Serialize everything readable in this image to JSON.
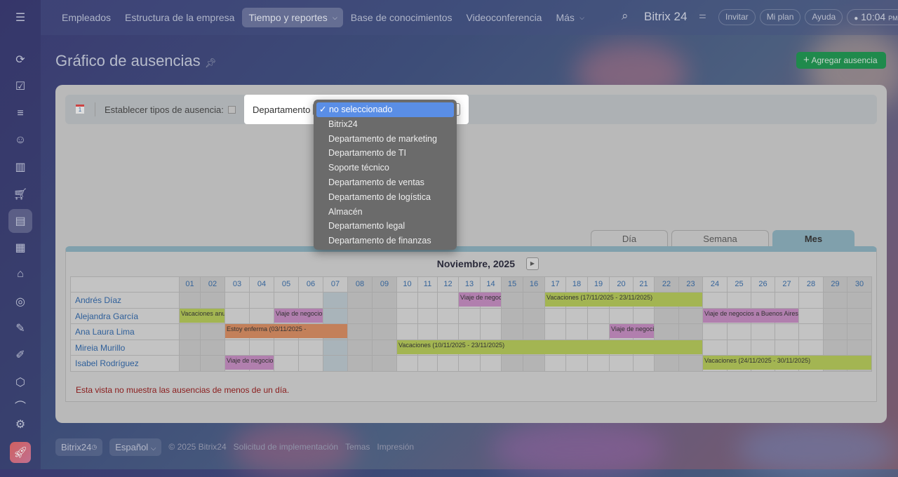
{
  "topnav": {
    "items": [
      "Empleados",
      "Estructura de la empresa",
      "Tiempo y reportes",
      "Base de conocimientos",
      "Videoconferencia",
      "Más"
    ],
    "active": 2,
    "brand": "Bitrix 24",
    "invite": "Invitar",
    "plan": "Mi plan",
    "help": "Ayuda",
    "time": "10:04",
    "ampm": "PM"
  },
  "sidebar": {
    "icons": [
      "feed-icon",
      "tasks-icon",
      "crm-funnel-icon",
      "robot-icon",
      "analytics-icon",
      "shop-cart-icon",
      "employees-icon",
      "calendar-list-icon",
      "warehouse-icon",
      "target-icon",
      "sign-pen-icon",
      "document-edit-icon",
      "box-icon",
      "more-icon",
      "settings-icon",
      "rocket-icon"
    ],
    "active": 6
  },
  "page": {
    "title": "Gráfico de ausencias",
    "add_button": "Agregar ausencia"
  },
  "filter": {
    "types_label": "Establecer tipos de ausencia:",
    "department_label": "Departamento",
    "department_options": [
      "no seleccionado",
      "Bitrix24",
      "Departamento de marketing",
      "Departamento de TI",
      "Soporte técnico",
      "Departamento de ventas",
      "Departamento de logística",
      "Almacén",
      "Departamento legal",
      "Departamento de finanzas"
    ],
    "selected": 0
  },
  "view_tabs": [
    "Día",
    "Semana",
    "Mes"
  ],
  "active_tab": 2,
  "calendar": {
    "month_title": "Noviembre, 2025",
    "days": [
      "01",
      "02",
      "03",
      "04",
      "05",
      "06",
      "07",
      "08",
      "09",
      "10",
      "11",
      "12",
      "13",
      "14",
      "15",
      "16",
      "17",
      "18",
      "19",
      "20",
      "21",
      "22",
      "23",
      "24",
      "25",
      "26",
      "27",
      "28",
      "29",
      "30"
    ],
    "weekends": [
      1,
      2,
      8,
      9,
      15,
      16,
      22,
      23,
      29,
      30
    ],
    "today": 7,
    "employees": [
      {
        "name": "Andrés Díaz",
        "absences": [
          {
            "label": "Viaje de negocios",
            "start": 13,
            "end": 14,
            "type": "trip"
          },
          {
            "label": "Vacaciones (17/11/2025 - 23/11/2025)",
            "start": 17,
            "end": 23,
            "type": "vacation"
          }
        ]
      },
      {
        "name": "Alejandra García",
        "absences": [
          {
            "label": "Vacaciones anuales",
            "start": 1,
            "end": 2,
            "type": "vacation"
          },
          {
            "label": "Viaje de negocios",
            "start": 5,
            "end": 6,
            "type": "trip"
          },
          {
            "label": "Viaje de negocios a Buenos Aires",
            "start": 24,
            "end": 27,
            "type": "trip"
          }
        ]
      },
      {
        "name": "Ana Laura Lima",
        "absences": [
          {
            "label": "Estoy enferma (03/11/2025 - ",
            "start": 3,
            "end": 7,
            "type": "sick"
          },
          {
            "label": "Viaje de negocios",
            "start": 20,
            "end": 21,
            "type": "trip"
          }
        ]
      },
      {
        "name": "Mireia Murillo",
        "absences": [
          {
            "label": "Vacaciones (10/11/2025 - 23/11/2025)",
            "start": 10,
            "end": 23,
            "type": "vacation"
          }
        ]
      },
      {
        "name": "Isabel Rodríguez",
        "absences": [
          {
            "label": "Viaje de negocios",
            "start": 3,
            "end": 4,
            "type": "trip"
          },
          {
            "label": "Vacaciones (24/11/2025 - 30/11/2025)",
            "start": 24,
            "end": 30,
            "type": "vacation"
          }
        ]
      }
    ],
    "note": "Esta vista no muestra las ausencias de menos de un día."
  },
  "colors": {
    "vacation": "#a3b552",
    "trip": "#b17fae",
    "sick": "#c3805a",
    "accent": "#1f8a4c"
  },
  "footer": {
    "brand": "Bitrix24",
    "language": "Español",
    "copyright": "© 2025 Bitrix24",
    "links": [
      "Solicitud de implementación",
      "Temas",
      "Impresión"
    ]
  }
}
